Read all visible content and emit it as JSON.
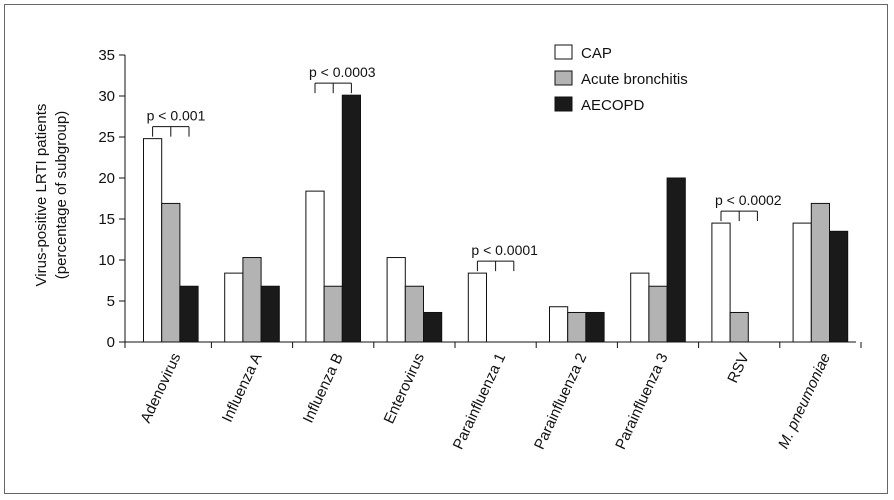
{
  "chart_data": {
    "type": "bar",
    "categories": [
      "Adenovirus",
      "Influenza A",
      "Influenza B",
      "Enterovirus",
      "Parainfluenza 1",
      "Parainfluenza 2",
      "Parainfluenza 3",
      "RSV",
      "M. pneumoniae"
    ],
    "series": [
      {
        "name": "CAP",
        "color": "#ffffff",
        "values": [
          24.8,
          8.4,
          18.4,
          10.3,
          8.4,
          4.3,
          8.4,
          14.5,
          14.5
        ]
      },
      {
        "name": "Acute bronchitis",
        "color": "#b3b3b3",
        "values": [
          16.9,
          10.3,
          6.8,
          6.8,
          0,
          3.6,
          6.8,
          3.6,
          16.9
        ]
      },
      {
        "name": "AECOPD",
        "color": "#1a1a1a",
        "values": [
          6.8,
          6.8,
          30.1,
          3.6,
          0,
          3.6,
          20.0,
          0,
          13.5
        ]
      }
    ],
    "ylabel_line1": "Virus-positive LRTI patients",
    "ylabel_line2": "(percentage of subgroup)",
    "ylim": [
      0,
      35
    ],
    "yticks": [
      "0",
      "5",
      "10",
      "15",
      "20",
      "25",
      "30",
      "35"
    ],
    "legend_position": "top-right",
    "annotations": [
      {
        "text": "p < 0.001",
        "category": "Adenovirus"
      },
      {
        "text": "p < 0.0003",
        "category": "Influenza B"
      },
      {
        "text": "p < 0.0001",
        "category": "Parainfluenza 1"
      },
      {
        "text": "p < 0.0002",
        "category": "RSV"
      }
    ]
  }
}
